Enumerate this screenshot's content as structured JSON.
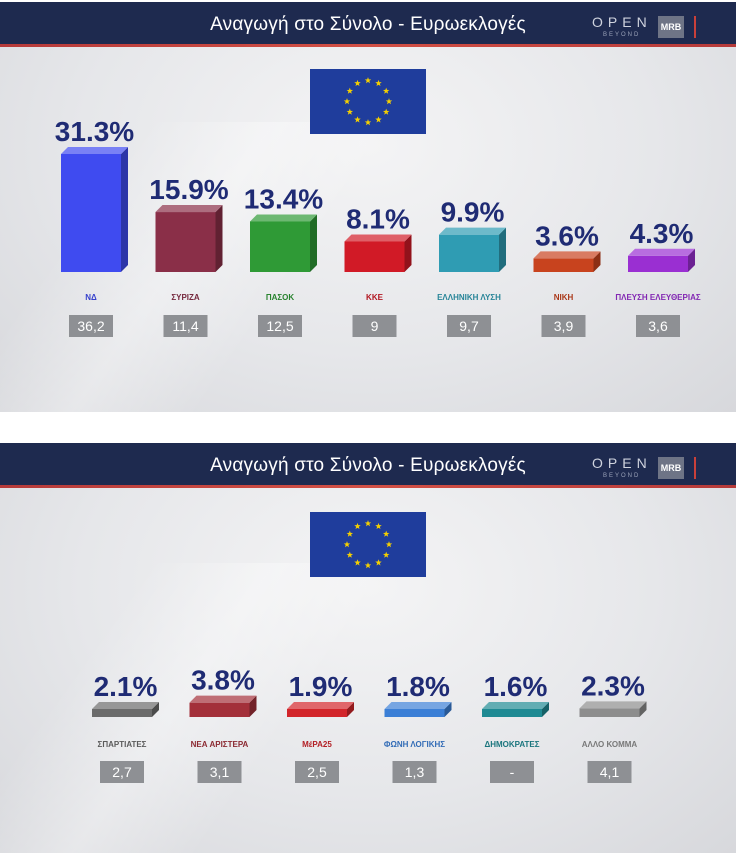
{
  "header": {
    "title": "Αναγωγή στο Σύνολο - Ευρωεκλογές"
  },
  "brand": {
    "open": "OPEN",
    "beyond": "BEYOND",
    "mrb": "MRB"
  },
  "chart_data": [
    {
      "type": "bar",
      "categories": [
        "ΝΔ",
        "ΣΥΡΙΖΑ",
        "ΠΑΣΟΚ",
        "ΚΚΕ",
        "Ελληνική Λύση",
        "ΝΙΚΗ",
        "Πλεύση Ελευθερίας"
      ],
      "values": [
        31.3,
        15.9,
        13.4,
        8.1,
        9.9,
        3.6,
        4.3
      ],
      "value_labels": [
        "31.3%",
        "15.9%",
        "13.4%",
        "8.1%",
        "9.9%",
        "3.6%",
        "4.3%"
      ],
      "previous_labels": [
        "36,2",
        "11,4",
        "12,5",
        "9",
        "9,7",
        "3,9",
        "3,6"
      ],
      "logo_texts": [
        "ΝΔ",
        "ΣΥΡΙΖΑ",
        "ΠΑΣΟΚ",
        "ΚΚΕ",
        "ΕΛΛΗΝΙΚΗ ΛΥΣΗ",
        "ΝΙΚΗ",
        "ΠΛΕΥΣΗ ΕΛΕΥΘΕΡΙΑΣ"
      ],
      "colors": [
        "#3f4bf0",
        "#8a2f48",
        "#2f9a36",
        "#d11a26",
        "#2f9cb3",
        "#c8431e",
        "#9a2fd2"
      ],
      "ylim": [
        0,
        31.3
      ]
    },
    {
      "type": "bar",
      "categories": [
        "Σπαρτιάτες",
        "Νέα Αριστερά",
        "ΜέΡΑ25",
        "Φωνή Λογικής",
        "Δημοκράτες",
        "Άλλο Κόμμα"
      ],
      "values": [
        2.1,
        3.8,
        1.9,
        1.8,
        1.6,
        2.3
      ],
      "value_labels": [
        "2.1%",
        "3.8%",
        "1.9%",
        "1.8%",
        "1.6%",
        "2.3%"
      ],
      "previous_labels": [
        "2,7",
        "3,1",
        "2,5",
        "1,3",
        "-",
        "4,1"
      ],
      "logo_texts": [
        "ΣΠΑΡΤΙΑΤΕΣ",
        "ΝΕΑ ΑΡΙΣΤΕΡΑ",
        "ΜέΡΑ25",
        "ΦΩΝΗ ΛΟΓΙΚΗΣ",
        "ΔΗΜΟΚΡΑΤΕΣ",
        "ΑΛΛΟ ΚΟΜΜΑ"
      ],
      "colors": [
        "#6b6b6b",
        "#a3303a",
        "#d2252a",
        "#3b7fd6",
        "#1f8a93",
        "#8d8d8d"
      ],
      "ylim": [
        0,
        31.3
      ]
    }
  ],
  "colors": {
    "header_bg": "#1e2a4f",
    "value_text": "#1f2b74",
    "prev_box": "#8e9094",
    "eu_blue": "#1f3d9c",
    "eu_star": "#f5d000"
  }
}
